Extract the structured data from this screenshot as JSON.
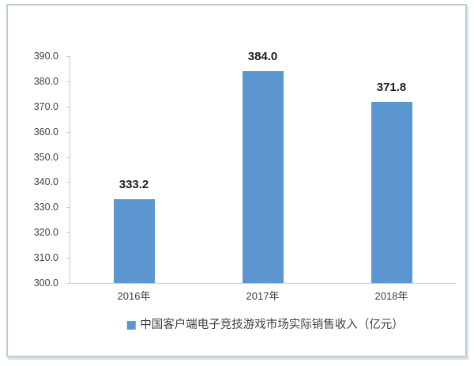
{
  "chart_data": {
    "type": "bar",
    "categories": [
      "2016年",
      "2017年",
      "2018年"
    ],
    "values": [
      333.2,
      384.0,
      371.8
    ],
    "value_labels": [
      "333.2",
      "384.0",
      "371.8"
    ],
    "title": "",
    "xlabel": "",
    "ylabel": "",
    "ylim": [
      300,
      390
    ],
    "ytick_step": 10,
    "ytick_labels_top_to_bottom": [
      "390.0",
      "380.0",
      "370.0",
      "360.0",
      "350.0",
      "340.0",
      "330.0",
      "320.0",
      "310.0",
      "300.0"
    ],
    "grid": false,
    "legend": {
      "position": "bottom",
      "entries": [
        {
          "label": "中国客户端电子竞技游戏市场实际销售收入（亿元）",
          "color": "#5b96d0"
        }
      ]
    },
    "colors": {
      "bar": "#5b96d0",
      "axis": "#c8cccf",
      "tick_label": "#3f3f3f",
      "value_label": "#1f1f1f",
      "frame_border": "#b9cedd",
      "background": "#ffffff"
    }
  }
}
